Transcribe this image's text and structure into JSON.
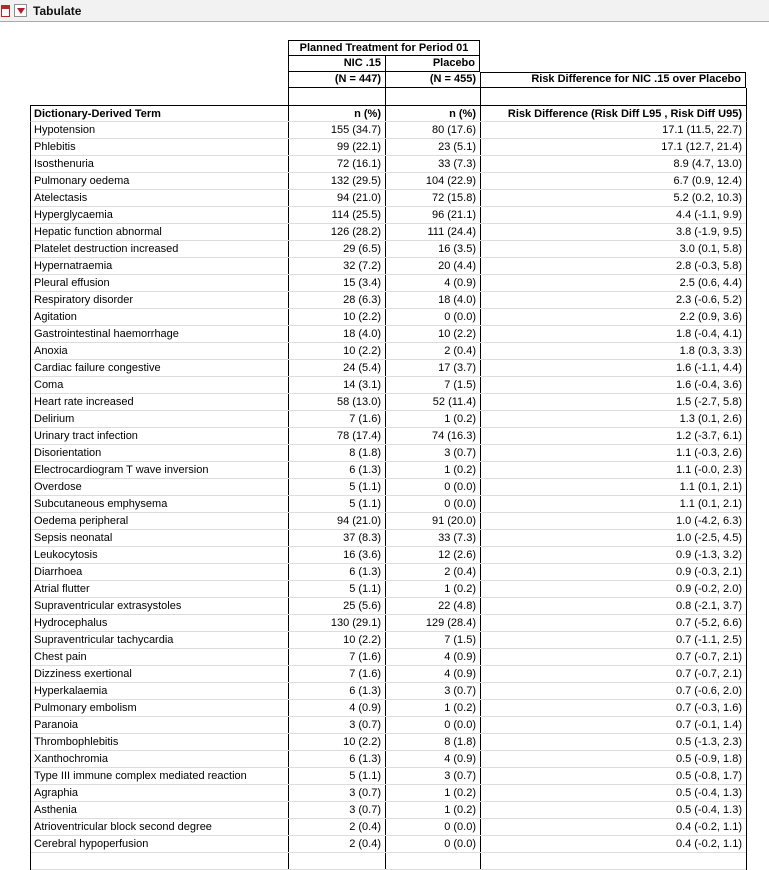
{
  "titlebar": {
    "title": "Tabulate"
  },
  "table": {
    "header": {
      "spanner": "Planned Treatment for Period 01",
      "treatment1": "NIC .15",
      "treatment2": "Placebo",
      "n1": "(N = 447)",
      "n2": "(N = 455)",
      "risk_title": "Risk Difference for NIC .15 over Placebo",
      "term_label": "Dictionary-Derived Term",
      "stat1": "n (%)",
      "stat2": "n (%)",
      "risk_stat": "Risk Difference (Risk Diff L95 , Risk Diff U95)"
    },
    "rows": [
      {
        "term": "Hypotension",
        "nic": "155 (34.7)",
        "placebo": "80 (17.6)",
        "rd": "17.1 (11.5, 22.7)"
      },
      {
        "term": "Phlebitis",
        "nic": "99 (22.1)",
        "placebo": "23 (5.1)",
        "rd": "17.1 (12.7, 21.4)"
      },
      {
        "term": "Isosthenuria",
        "nic": "72 (16.1)",
        "placebo": "33 (7.3)",
        "rd": "8.9 (4.7, 13.0)"
      },
      {
        "term": "Pulmonary oedema",
        "nic": "132 (29.5)",
        "placebo": "104 (22.9)",
        "rd": "6.7 (0.9, 12.4)"
      },
      {
        "term": "Atelectasis",
        "nic": "94 (21.0)",
        "placebo": "72 (15.8)",
        "rd": "5.2 (0.2, 10.3)"
      },
      {
        "term": "Hyperglycaemia",
        "nic": "114 (25.5)",
        "placebo": "96 (21.1)",
        "rd": "4.4 (-1.1, 9.9)"
      },
      {
        "term": "Hepatic function abnormal",
        "nic": "126 (28.2)",
        "placebo": "111 (24.4)",
        "rd": "3.8 (-1.9, 9.5)"
      },
      {
        "term": "Platelet destruction increased",
        "nic": "29 (6.5)",
        "placebo": "16 (3.5)",
        "rd": "3.0 (0.1, 5.8)"
      },
      {
        "term": "Hypernatraemia",
        "nic": "32 (7.2)",
        "placebo": "20 (4.4)",
        "rd": "2.8 (-0.3, 5.8)"
      },
      {
        "term": "Pleural effusion",
        "nic": "15 (3.4)",
        "placebo": "4 (0.9)",
        "rd": "2.5 (0.6, 4.4)"
      },
      {
        "term": "Respiratory disorder",
        "nic": "28 (6.3)",
        "placebo": "18 (4.0)",
        "rd": "2.3 (-0.6, 5.2)"
      },
      {
        "term": "Agitation",
        "nic": "10 (2.2)",
        "placebo": "0 (0.0)",
        "rd": "2.2 (0.9, 3.6)"
      },
      {
        "term": "Gastrointestinal haemorrhage",
        "nic": "18 (4.0)",
        "placebo": "10 (2.2)",
        "rd": "1.8 (-0.4, 4.1)"
      },
      {
        "term": "Anoxia",
        "nic": "10 (2.2)",
        "placebo": "2 (0.4)",
        "rd": "1.8 (0.3, 3.3)"
      },
      {
        "term": "Cardiac failure congestive",
        "nic": "24 (5.4)",
        "placebo": "17 (3.7)",
        "rd": "1.6 (-1.1, 4.4)"
      },
      {
        "term": "Coma",
        "nic": "14 (3.1)",
        "placebo": "7 (1.5)",
        "rd": "1.6 (-0.4, 3.6)"
      },
      {
        "term": "Heart rate increased",
        "nic": "58 (13.0)",
        "placebo": "52 (11.4)",
        "rd": "1.5 (-2.7, 5.8)"
      },
      {
        "term": "Delirium",
        "nic": "7 (1.6)",
        "placebo": "1 (0.2)",
        "rd": "1.3 (0.1, 2.6)"
      },
      {
        "term": "Urinary tract infection",
        "nic": "78 (17.4)",
        "placebo": "74 (16.3)",
        "rd": "1.2 (-3.7, 6.1)"
      },
      {
        "term": "Disorientation",
        "nic": "8 (1.8)",
        "placebo": "3 (0.7)",
        "rd": "1.1 (-0.3, 2.6)"
      },
      {
        "term": "Electrocardiogram T wave inversion",
        "nic": "6 (1.3)",
        "placebo": "1 (0.2)",
        "rd": "1.1 (-0.0, 2.3)"
      },
      {
        "term": "Overdose",
        "nic": "5 (1.1)",
        "placebo": "0 (0.0)",
        "rd": "1.1 (0.1, 2.1)"
      },
      {
        "term": "Subcutaneous emphysema",
        "nic": "5 (1.1)",
        "placebo": "0 (0.0)",
        "rd": "1.1 (0.1, 2.1)"
      },
      {
        "term": "Oedema peripheral",
        "nic": "94 (21.0)",
        "placebo": "91 (20.0)",
        "rd": "1.0 (-4.2, 6.3)"
      },
      {
        "term": "Sepsis neonatal",
        "nic": "37 (8.3)",
        "placebo": "33 (7.3)",
        "rd": "1.0 (-2.5, 4.5)"
      },
      {
        "term": "Leukocytosis",
        "nic": "16 (3.6)",
        "placebo": "12 (2.6)",
        "rd": "0.9 (-1.3, 3.2)"
      },
      {
        "term": "Diarrhoea",
        "nic": "6 (1.3)",
        "placebo": "2 (0.4)",
        "rd": "0.9 (-0.3, 2.1)"
      },
      {
        "term": "Atrial flutter",
        "nic": "5 (1.1)",
        "placebo": "1 (0.2)",
        "rd": "0.9 (-0.2, 2.0)"
      },
      {
        "term": "Supraventricular extrasystoles",
        "nic": "25 (5.6)",
        "placebo": "22 (4.8)",
        "rd": "0.8 (-2.1, 3.7)"
      },
      {
        "term": "Hydrocephalus",
        "nic": "130 (29.1)",
        "placebo": "129 (28.4)",
        "rd": "0.7 (-5.2, 6.6)"
      },
      {
        "term": "Supraventricular tachycardia",
        "nic": "10 (2.2)",
        "placebo": "7 (1.5)",
        "rd": "0.7 (-1.1, 2.5)"
      },
      {
        "term": "Chest pain",
        "nic": "7 (1.6)",
        "placebo": "4 (0.9)",
        "rd": "0.7 (-0.7, 2.1)"
      },
      {
        "term": "Dizziness exertional",
        "nic": "7 (1.6)",
        "placebo": "4 (0.9)",
        "rd": "0.7 (-0.7, 2.1)"
      },
      {
        "term": "Hyperkalaemia",
        "nic": "6 (1.3)",
        "placebo": "3 (0.7)",
        "rd": "0.7 (-0.6, 2.0)"
      },
      {
        "term": "Pulmonary embolism",
        "nic": "4 (0.9)",
        "placebo": "1 (0.2)",
        "rd": "0.7 (-0.3, 1.6)"
      },
      {
        "term": "Paranoia",
        "nic": "3 (0.7)",
        "placebo": "0 (0.0)",
        "rd": "0.7 (-0.1, 1.4)"
      },
      {
        "term": "Thrombophlebitis",
        "nic": "10 (2.2)",
        "placebo": "8 (1.8)",
        "rd": "0.5 (-1.3, 2.3)"
      },
      {
        "term": "Xanthochromia",
        "nic": "6 (1.3)",
        "placebo": "4 (0.9)",
        "rd": "0.5 (-0.9, 1.8)"
      },
      {
        "term": "Type III immune complex mediated reaction",
        "nic": "5 (1.1)",
        "placebo": "3 (0.7)",
        "rd": "0.5 (-0.8, 1.7)"
      },
      {
        "term": "Agraphia",
        "nic": "3 (0.7)",
        "placebo": "1 (0.2)",
        "rd": "0.5 (-0.4, 1.3)"
      },
      {
        "term": "Asthenia",
        "nic": "3 (0.7)",
        "placebo": "1 (0.2)",
        "rd": "0.5 (-0.4, 1.3)"
      },
      {
        "term": "Atrioventricular block second degree",
        "nic": "2 (0.4)",
        "placebo": "0 (0.0)",
        "rd": "0.4 (-0.2, 1.1)"
      },
      {
        "term": "Cerebral hypoperfusion",
        "nic": "2 (0.4)",
        "placebo": "0 (0.0)",
        "rd": "0.4 (-0.2, 1.1)"
      },
      {
        "term": "",
        "nic": "",
        "placebo": "",
        "rd": ""
      }
    ]
  }
}
